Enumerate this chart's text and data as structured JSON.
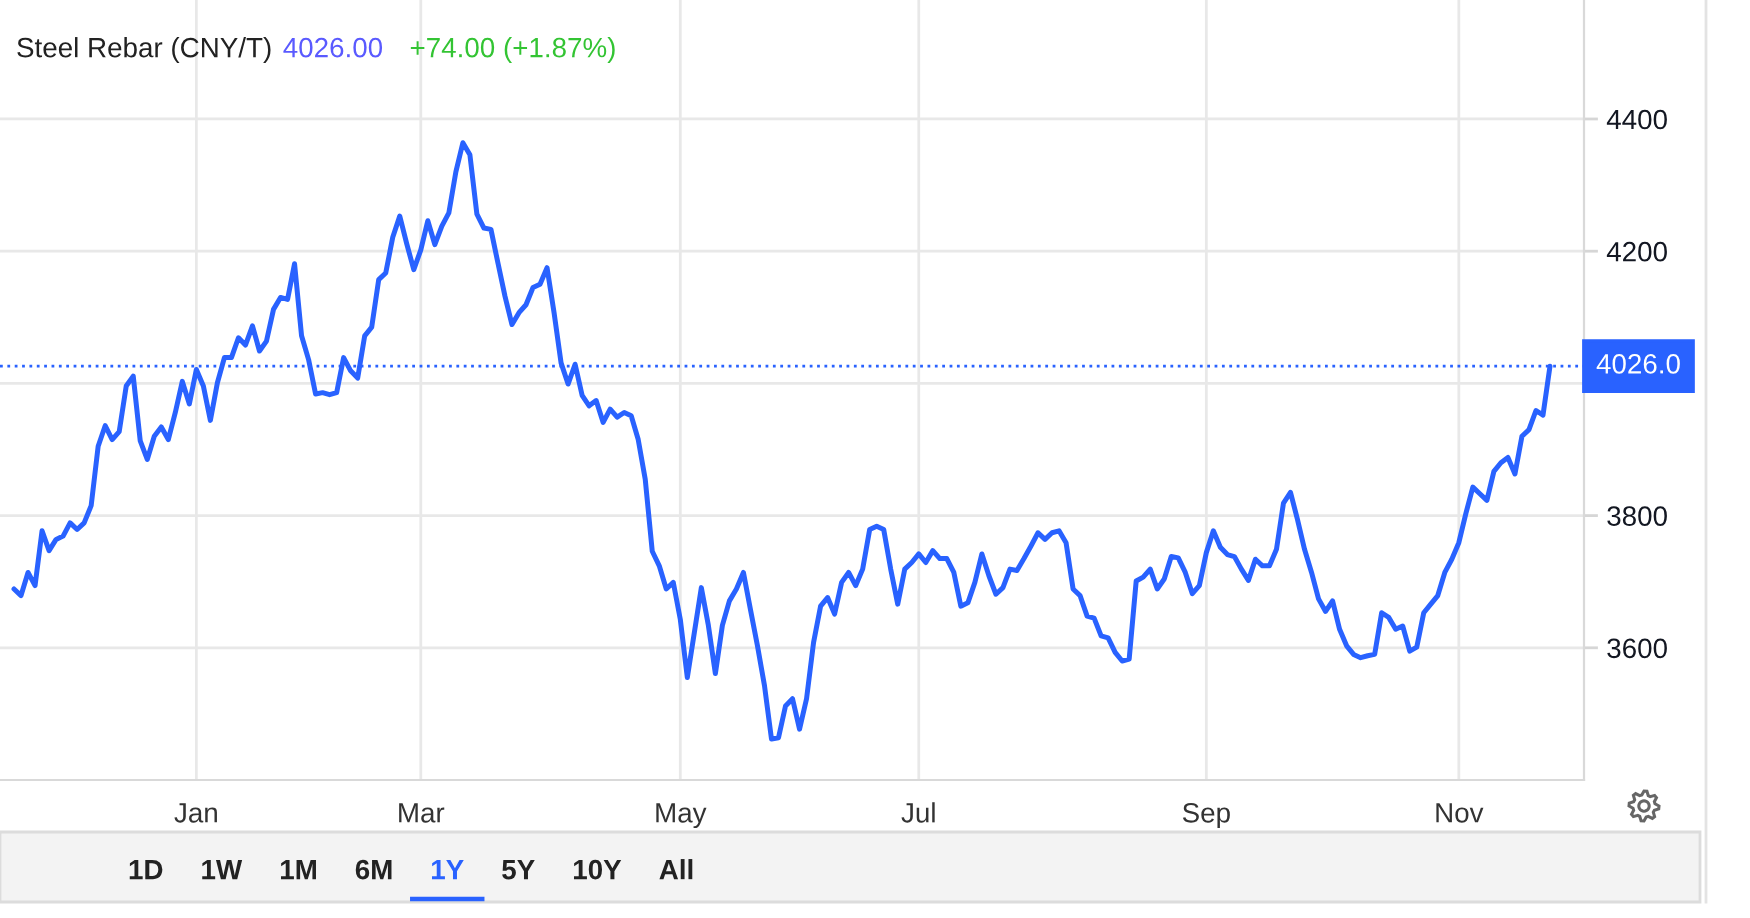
{
  "chart_data": {
    "type": "line",
    "title": "Steel Rebar (CNY/T)",
    "annotations": [
      "4026.00",
      "+74.00 (+1.87%)",
      "1D",
      "1W",
      "1M",
      "6M",
      "1Y",
      "5Y",
      "10Y",
      "All"
    ],
    "categories": [
      null,
      null,
      null,
      null,
      null,
      null,
      null,
      null,
      null,
      null,
      null,
      null,
      null,
      null,
      null,
      null,
      null,
      null,
      null,
      null,
      null,
      null,
      null,
      null,
      null,
      null,
      "Jan",
      null,
      null,
      null,
      null,
      null,
      null,
      null,
      null,
      null,
      null,
      null,
      null,
      null,
      null,
      null,
      null,
      null,
      null,
      null,
      null,
      null,
      null,
      null,
      null,
      null,
      null,
      null,
      null,
      null,
      null,
      null,
      "Mar",
      null,
      null,
      null,
      null,
      null,
      null,
      null,
      null,
      null,
      null,
      null,
      null,
      null,
      null,
      null,
      null,
      null,
      null,
      null,
      null,
      null,
      null,
      null,
      null,
      null,
      null,
      null,
      null,
      null,
      null,
      null,
      null,
      null,
      null,
      null,
      null,
      "May",
      null,
      null,
      null,
      null,
      null,
      null,
      null,
      null,
      null,
      null,
      null,
      null,
      null,
      null,
      null,
      null,
      null,
      null,
      null,
      null,
      null,
      null,
      null,
      null,
      null,
      null,
      null,
      null,
      null,
      null,
      null,
      null,
      null,
      "Jul",
      null,
      null,
      null,
      null,
      null,
      null,
      null,
      null,
      null,
      null,
      null,
      null,
      null,
      null,
      null,
      null,
      null,
      null,
      null,
      null,
      null,
      null,
      null,
      null,
      null,
      null,
      null,
      null,
      null,
      null,
      null,
      null,
      null,
      null,
      null,
      null,
      null,
      null,
      null,
      null,
      "Sep",
      null,
      null,
      null,
      null,
      null,
      null,
      null,
      null,
      null,
      null,
      null,
      null,
      null,
      null,
      null,
      null,
      null,
      null,
      null,
      null,
      null,
      null,
      null,
      null,
      null,
      null,
      null,
      null,
      null,
      null,
      null,
      null,
      null,
      null,
      null,
      "Nov",
      null,
      null,
      null,
      null,
      null,
      null,
      null,
      null,
      null,
      null,
      null,
      null,
      null
    ],
    "series": [
      {
        "color": "#2962ff",
        "values": [
          3689,
          3679,
          3714,
          3694,
          3777,
          3747,
          3764,
          3769,
          3789,
          3779,
          3789,
          3815,
          3905,
          3936,
          3915,
          3927,
          3996,
          4011,
          3913,
          3885,
          3920,
          3934,
          3915,
          3956,
          4003,
          3969,
          4021,
          3996,
          3944,
          4001,
          4039,
          4039,
          4069,
          4058,
          4087,
          4049,
          4064,
          4112,
          4130,
          4127,
          4181,
          4072,
          4036,
          3984,
          3986,
          3983,
          3986,
          4039,
          4019,
          4008,
          4072,
          4085,
          4157,
          4167,
          4221,
          4253,
          4211,
          4172,
          4202,
          4246,
          4210,
          4238,
          4258,
          4320,
          4364,
          4346,
          4256,
          4235,
          4233,
          4182,
          4132,
          4089,
          4107,
          4119,
          4145,
          4150,
          4175,
          4107,
          4031,
          3999,
          4029,
          3982,
          3966,
          3974,
          3941,
          3961,
          3949,
          3956,
          3951,
          3915,
          3855,
          3746,
          3724,
          3689,
          3699,
          3643,
          3555,
          3623,
          3691,
          3634,
          3561,
          3634,
          3671,
          3689,
          3714,
          3658,
          3603,
          3543,
          3462,
          3464,
          3512,
          3523,
          3477,
          3523,
          3608,
          3663,
          3676,
          3651,
          3699,
          3714,
          3694,
          3719,
          3779,
          3784,
          3779,
          3719,
          3666,
          3719,
          3729,
          3742,
          3729,
          3747,
          3735,
          3735,
          3714,
          3663,
          3668,
          3699,
          3742,
          3709,
          3681,
          3691,
          3719,
          3717,
          3735,
          3754,
          3774,
          3764,
          3774,
          3777,
          3759,
          3689,
          3679,
          3648,
          3645,
          3618,
          3615,
          3593,
          3580,
          3583,
          3701,
          3707,
          3719,
          3689,
          3704,
          3738,
          3736,
          3714,
          3682,
          3694,
          3744,
          3777,
          3752,
          3741,
          3738,
          3719,
          3702,
          3734,
          3724,
          3724,
          3749,
          3819,
          3835,
          3794,
          3749,
          3714,
          3674,
          3655,
          3671,
          3628,
          3603,
          3590,
          3585,
          3588,
          3590,
          3653,
          3646,
          3628,
          3633,
          3595,
          3601,
          3653,
          3666,
          3679,
          3714,
          3734,
          3759,
          3803,
          3843,
          3833,
          3823,
          3867,
          3880,
          3888,
          3863,
          3920,
          3930,
          3959,
          3952,
          4026
        ]
      }
    ],
    "ylim": [
      3400,
      4580
    ],
    "yticks": [
      3600,
      3800,
      {
        "value": 4000,
        "label": null
      },
      4200,
      4400
    ],
    "ref_lines": [
      {
        "axis": "y",
        "value": 4026,
        "label": "4026.0",
        "color": "#2962ff",
        "line_style": "dotted"
      }
    ],
    "grid": true,
    "line_style": "solid"
  }
}
